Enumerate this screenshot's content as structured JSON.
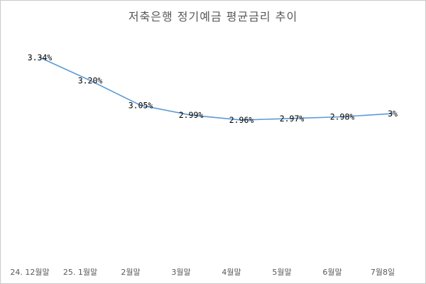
{
  "chart_data": {
    "type": "line",
    "title": "저축은행 정기예금 평균금리 추이",
    "xlabel": "",
    "ylabel": "",
    "categories": [
      "24. 12월말",
      "25. 1월말",
      "2월말",
      "3월말",
      "4월말",
      "5월말",
      "6월말",
      "7월8일"
    ],
    "series": [
      {
        "values": [
          3.34,
          3.2,
          3.05,
          2.99,
          2.96,
          2.97,
          2.98,
          3.0
        ],
        "labels": [
          "3.34%",
          "3.20%",
          "3.05%",
          "2.99%",
          "2.96%",
          "2.97%",
          "2.98%",
          "3%"
        ],
        "color": "#5b9bd5"
      }
    ],
    "ylim": [
      2.0,
      3.4
    ],
    "grid": false,
    "legend": "none"
  }
}
